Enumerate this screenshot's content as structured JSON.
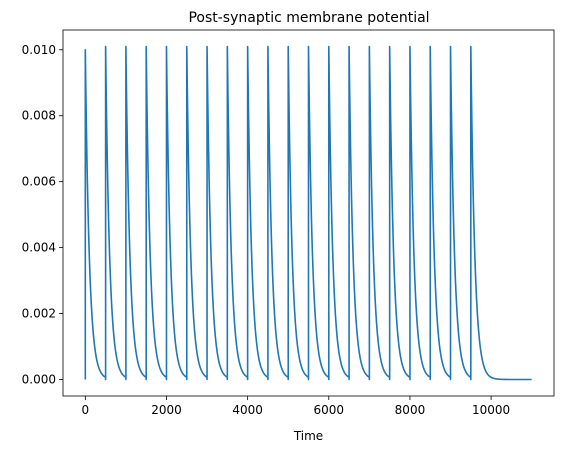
{
  "chart_data": {
    "type": "line",
    "title": "Post-synaptic membrane potential",
    "xlabel": "Time",
    "ylabel": "",
    "xlim": [
      -550,
      11550
    ],
    "ylim": [
      -0.0005,
      0.0106
    ],
    "xticks": [
      0,
      2000,
      4000,
      6000,
      8000,
      10000
    ],
    "xtick_labels": [
      "0",
      "2000",
      "4000",
      "6000",
      "8000",
      "10000"
    ],
    "yticks": [
      0.0,
      0.002,
      0.004,
      0.006,
      0.008,
      0.01
    ],
    "ytick_labels": [
      "0.000",
      "0.002",
      "0.004",
      "0.006",
      "0.008",
      "0.010"
    ],
    "grid": false,
    "series": [
      {
        "name": "",
        "color": "#1f77b4",
        "spike_times": [
          0,
          500,
          1000,
          1500,
          2000,
          2500,
          3000,
          3500,
          4000,
          4500,
          5000,
          5500,
          6000,
          6500,
          7000,
          7500,
          8000,
          8500,
          9000,
          9500
        ],
        "peak_values": [
          0.01,
          0.0101,
          0.0101,
          0.0101,
          0.0101,
          0.0101,
          0.0101,
          0.0101,
          0.0101,
          0.0101,
          0.0101,
          0.0101,
          0.0101,
          0.0101,
          0.0101,
          0.0101,
          0.0101,
          0.0101,
          0.0101,
          0.0101
        ],
        "baseline": 0.0,
        "end_x": 11000,
        "decay_time_constant": 100
      }
    ]
  }
}
